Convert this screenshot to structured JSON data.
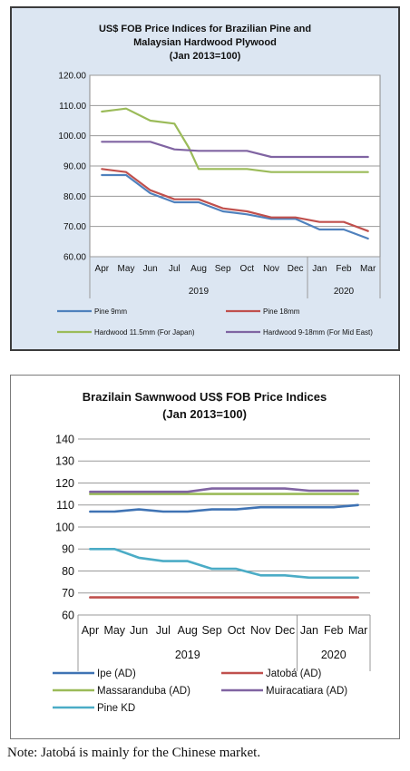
{
  "chart_data": [
    {
      "type": "line",
      "title": "US$ FOB Price Indices for Brazilian Pine and",
      "subtitle": "Malaysian Hardwood Plywood",
      "subtitle2": "(Jan 2013=100)",
      "categories": [
        "Apr",
        "May",
        "Jun",
        "Jul",
        "Aug",
        "Sep",
        "Oct",
        "Nov",
        "Dec",
        "Jan",
        "Feb",
        "Mar"
      ],
      "year_labels": [
        "2019",
        "2020"
      ],
      "ylim": [
        60,
        120
      ],
      "yticks": [
        "60.00",
        "70.00",
        "80.00",
        "90.00",
        "100.00",
        "110.00",
        "120.00"
      ],
      "grid": true,
      "legend_position": "bottom",
      "series": [
        {
          "name": "Pine 9mm",
          "color": "#4f81bd",
          "values": [
            [
              0,
              87
            ],
            [
              1,
              87
            ],
            [
              2,
              81
            ],
            [
              3,
              78
            ],
            [
              4,
              78
            ],
            [
              5,
              75
            ],
            [
              6,
              74
            ],
            [
              7,
              72.5
            ],
            [
              8,
              72.5
            ],
            [
              9,
              69
            ],
            [
              10,
              69
            ],
            [
              11,
              66
            ]
          ]
        },
        {
          "name": "Pine 18mm",
          "color": "#c0504d",
          "values": [
            [
              0,
              89
            ],
            [
              1,
              88
            ],
            [
              2,
              82
            ],
            [
              3,
              79
            ],
            [
              4,
              79
            ],
            [
              5,
              76
            ],
            [
              6,
              75
            ],
            [
              7,
              73
            ],
            [
              8,
              73
            ],
            [
              9,
              71.5
            ],
            [
              10,
              71.5
            ],
            [
              11,
              68.5
            ]
          ]
        },
        {
          "name": "Hardwood 11.5mm (For Japan)",
          "color": "#9bbb59",
          "values": [
            [
              0,
              108
            ],
            [
              1,
              109
            ],
            [
              2,
              105
            ],
            [
              3,
              104
            ],
            [
              3.6,
              96
            ],
            [
              4,
              89
            ],
            [
              5,
              89
            ],
            [
              6,
              89
            ],
            [
              7,
              88
            ],
            [
              8,
              88
            ],
            [
              9,
              88
            ],
            [
              10,
              88
            ],
            [
              11,
              88
            ]
          ]
        },
        {
          "name": "Hardwood 9-18mm (For Mid East)",
          "color": "#8064a2",
          "values": [
            [
              0,
              98
            ],
            [
              1,
              98
            ],
            [
              2,
              98
            ],
            [
              3,
              95.5
            ],
            [
              4,
              95
            ],
            [
              5,
              95
            ],
            [
              6,
              95
            ],
            [
              7,
              93
            ],
            [
              8,
              93
            ],
            [
              9,
              93
            ],
            [
              10,
              93
            ],
            [
              11,
              93
            ]
          ]
        }
      ]
    },
    {
      "type": "line",
      "title": "Brazilain Sawnwood US$ FOB Price Indices",
      "subtitle": "(Jan 2013=100)",
      "categories": [
        "Apr",
        "May",
        "Jun",
        "Jul",
        "Aug",
        "Sep",
        "Oct",
        "Nov",
        "Dec",
        "Jan",
        "Feb",
        "Mar"
      ],
      "year_labels": [
        "2019",
        "2020"
      ],
      "ylim": [
        60,
        140
      ],
      "yticks": [
        "60",
        "70",
        "80",
        "90",
        "100",
        "110",
        "120",
        "130",
        "140"
      ],
      "grid": true,
      "legend_position": "bottom",
      "series": [
        {
          "name": "Ipe (AD)",
          "color": "#3f73b4",
          "values": [
            [
              0,
              107
            ],
            [
              1,
              107
            ],
            [
              2,
              108
            ],
            [
              3,
              107
            ],
            [
              4,
              107
            ],
            [
              5,
              108
            ],
            [
              6,
              108
            ],
            [
              7,
              109
            ],
            [
              8,
              109
            ],
            [
              9,
              109
            ],
            [
              10,
              109
            ],
            [
              11,
              110
            ]
          ]
        },
        {
          "name": "Jatobá (AD)",
          "color": "#c0504d",
          "values": [
            [
              0,
              68
            ],
            [
              1,
              68
            ],
            [
              2,
              68
            ],
            [
              3,
              68
            ],
            [
              4,
              68
            ],
            [
              5,
              68
            ],
            [
              6,
              68
            ],
            [
              7,
              68
            ],
            [
              8,
              68
            ],
            [
              9,
              68
            ],
            [
              10,
              68
            ],
            [
              11,
              68
            ]
          ]
        },
        {
          "name": "Massaranduba (AD)",
          "color": "#9bbb59",
          "values": [
            [
              0,
              115
            ],
            [
              1,
              115
            ],
            [
              2,
              115
            ],
            [
              3,
              115
            ],
            [
              4,
              115
            ],
            [
              5,
              115
            ],
            [
              6,
              115
            ],
            [
              7,
              115
            ],
            [
              8,
              115
            ],
            [
              9,
              115
            ],
            [
              10,
              115
            ],
            [
              11,
              115
            ]
          ]
        },
        {
          "name": "Muiracatiara (AD)",
          "color": "#8064a2",
          "values": [
            [
              0,
              116
            ],
            [
              1,
              116
            ],
            [
              2,
              116
            ],
            [
              3,
              116
            ],
            [
              4,
              116
            ],
            [
              5,
              117.5
            ],
            [
              6,
              117.5
            ],
            [
              7,
              117.5
            ],
            [
              8,
              117.5
            ],
            [
              9,
              116.5
            ],
            [
              10,
              116.5
            ],
            [
              11,
              116.5
            ]
          ]
        },
        {
          "name": "Pine KD",
          "color": "#4bacc6",
          "values": [
            [
              0,
              90
            ],
            [
              1,
              90
            ],
            [
              2,
              86
            ],
            [
              3,
              84.5
            ],
            [
              4,
              84.5
            ],
            [
              5,
              81
            ],
            [
              6,
              81
            ],
            [
              7,
              78
            ],
            [
              8,
              78
            ],
            [
              9,
              77
            ],
            [
              10,
              77
            ],
            [
              11,
              77
            ]
          ]
        }
      ]
    }
  ],
  "note": "Note: Jatobá is mainly for the Chinese market."
}
